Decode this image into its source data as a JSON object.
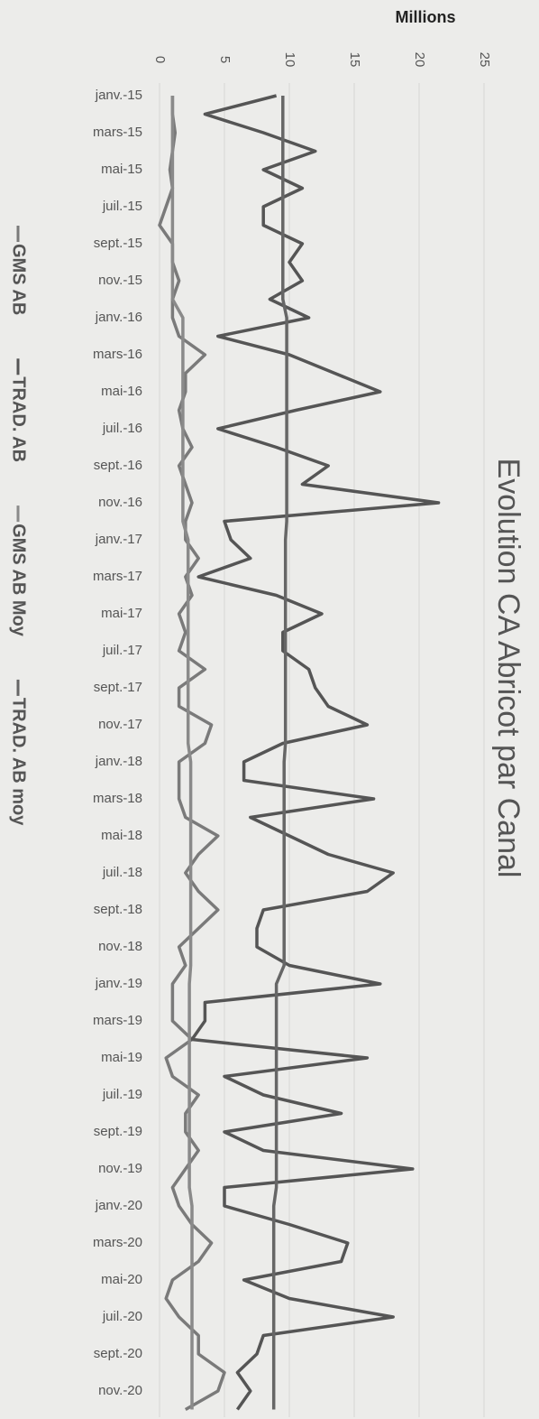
{
  "chart_data": {
    "type": "line",
    "title": "Evolution CA Abricot par Canal",
    "y_axis_label": "Millions",
    "categories": [
      "janv.-15",
      null,
      "mars-15",
      null,
      "mai-15",
      null,
      "juil.-15",
      null,
      "sept.-15",
      null,
      "nov.-15",
      null,
      "janv.-16",
      null,
      "mars-16",
      null,
      "mai-16",
      null,
      "juil.-16",
      null,
      "sept.-16",
      null,
      "nov.-16",
      null,
      "janv.-17",
      null,
      "mars-17",
      null,
      "mai-17",
      null,
      "juil.-17",
      null,
      "sept.-17",
      null,
      "nov.-17",
      null,
      "janv.-18",
      null,
      "mars-18",
      null,
      "mai-18",
      null,
      "juil.-18",
      null,
      "sept.-18",
      null,
      "nov.-18",
      null,
      "janv.-19",
      null,
      "mars-19",
      null,
      "mai-19",
      null,
      "juil.-19",
      null,
      "sept.-19",
      null,
      "nov.-19",
      null,
      "janv.-20",
      null,
      "mars-20",
      null,
      "mai-20",
      null,
      "juil.-20",
      null,
      "sept.-20",
      null,
      "nov.-20",
      null
    ],
    "series": [
      {
        "name": "GMS AB",
        "color": "#7a7a7a",
        "values": [
          1,
          1,
          1.2,
          1,
          0.8,
          1,
          0.5,
          0,
          1,
          1,
          1.5,
          1,
          1,
          1.5,
          3.5,
          2,
          2,
          1.5,
          1.8,
          2.5,
          1.5,
          2,
          2.5,
          2,
          2,
          3,
          2,
          2.5,
          1.5,
          2,
          1.5,
          3.5,
          1.5,
          1.5,
          4,
          3.5,
          1.5,
          1.5,
          1.5,
          2,
          4.5,
          3,
          2,
          3,
          4.5,
          3,
          1.5,
          2,
          1,
          1,
          1,
          2.5,
          0.5,
          1,
          3,
          2,
          2,
          3,
          2,
          1,
          1.5,
          2.5,
          4,
          3,
          1,
          0.5,
          1.5,
          3,
          3,
          5,
          4.5,
          2
        ]
      },
      {
        "name": "TRAD. AB",
        "color": "#555555",
        "values": [
          9,
          3.5,
          8,
          12,
          8,
          11,
          8,
          8,
          11,
          10,
          11,
          8.5,
          11.5,
          4.5,
          10,
          13.5,
          17,
          10.5,
          4.5,
          9,
          13,
          11,
          21.5,
          5,
          5.5,
          7,
          3,
          9,
          12.5,
          9.5,
          9.5,
          11.5,
          12,
          13,
          16,
          9.5,
          6.5,
          6.5,
          16.5,
          7,
          10,
          13,
          18,
          16,
          8,
          7.5,
          7.5,
          10,
          17,
          3.5,
          3.5,
          2.5,
          16,
          5,
          8,
          14,
          5,
          8,
          19.5,
          5,
          5,
          10,
          14.5,
          14,
          6.5,
          10,
          18,
          8,
          7.5,
          6,
          7,
          6
        ]
      },
      {
        "name": "GMS AB Moy",
        "color": "#8a8a8a",
        "values": [
          1,
          1,
          1,
          1,
          1,
          1,
          1,
          1,
          1,
          1,
          1,
          1,
          1.8,
          1.8,
          1.8,
          1.8,
          1.8,
          1.8,
          1.8,
          1.8,
          1.8,
          1.8,
          1.8,
          1.8,
          2.2,
          2.2,
          2.2,
          2.2,
          2.2,
          2.2,
          2.2,
          2.2,
          2.2,
          2.2,
          2.2,
          2.2,
          2.4,
          2.4,
          2.4,
          2.4,
          2.4,
          2.4,
          2.4,
          2.4,
          2.4,
          2.4,
          2.4,
          2.4,
          2.3,
          2.3,
          2.3,
          2.3,
          2.3,
          2.3,
          2.3,
          2.3,
          2.3,
          2.3,
          2.3,
          2.3,
          2.5,
          2.5,
          2.5,
          2.5,
          2.5,
          2.5,
          2.5,
          2.5,
          2.5,
          2.5,
          2.5,
          2.5
        ]
      },
      {
        "name": "TRAD. AB moy",
        "color": "#666666",
        "values": [
          9.5,
          9.5,
          9.5,
          9.5,
          9.5,
          9.5,
          9.5,
          9.5,
          9.5,
          9.5,
          9.5,
          9.5,
          9.8,
          9.8,
          9.8,
          9.8,
          9.8,
          9.8,
          9.8,
          9.8,
          9.8,
          9.8,
          9.8,
          9.8,
          9.7,
          9.7,
          9.7,
          9.7,
          9.7,
          9.7,
          9.7,
          9.7,
          9.7,
          9.7,
          9.7,
          9.7,
          9.6,
          9.6,
          9.6,
          9.6,
          9.6,
          9.6,
          9.6,
          9.6,
          9.6,
          9.6,
          9.6,
          9.6,
          9,
          9,
          9,
          9,
          9,
          9,
          9,
          9,
          9,
          9,
          9,
          9,
          8.8,
          8.8,
          8.8,
          8.8,
          8.8,
          8.8,
          8.8,
          8.8,
          8.8,
          8.8,
          8.8,
          8.8
        ]
      }
    ],
    "ylim": [
      0,
      25
    ],
    "yticks": [
      0,
      5,
      10,
      15,
      20,
      25
    ],
    "grid": true,
    "legend": "left"
  }
}
